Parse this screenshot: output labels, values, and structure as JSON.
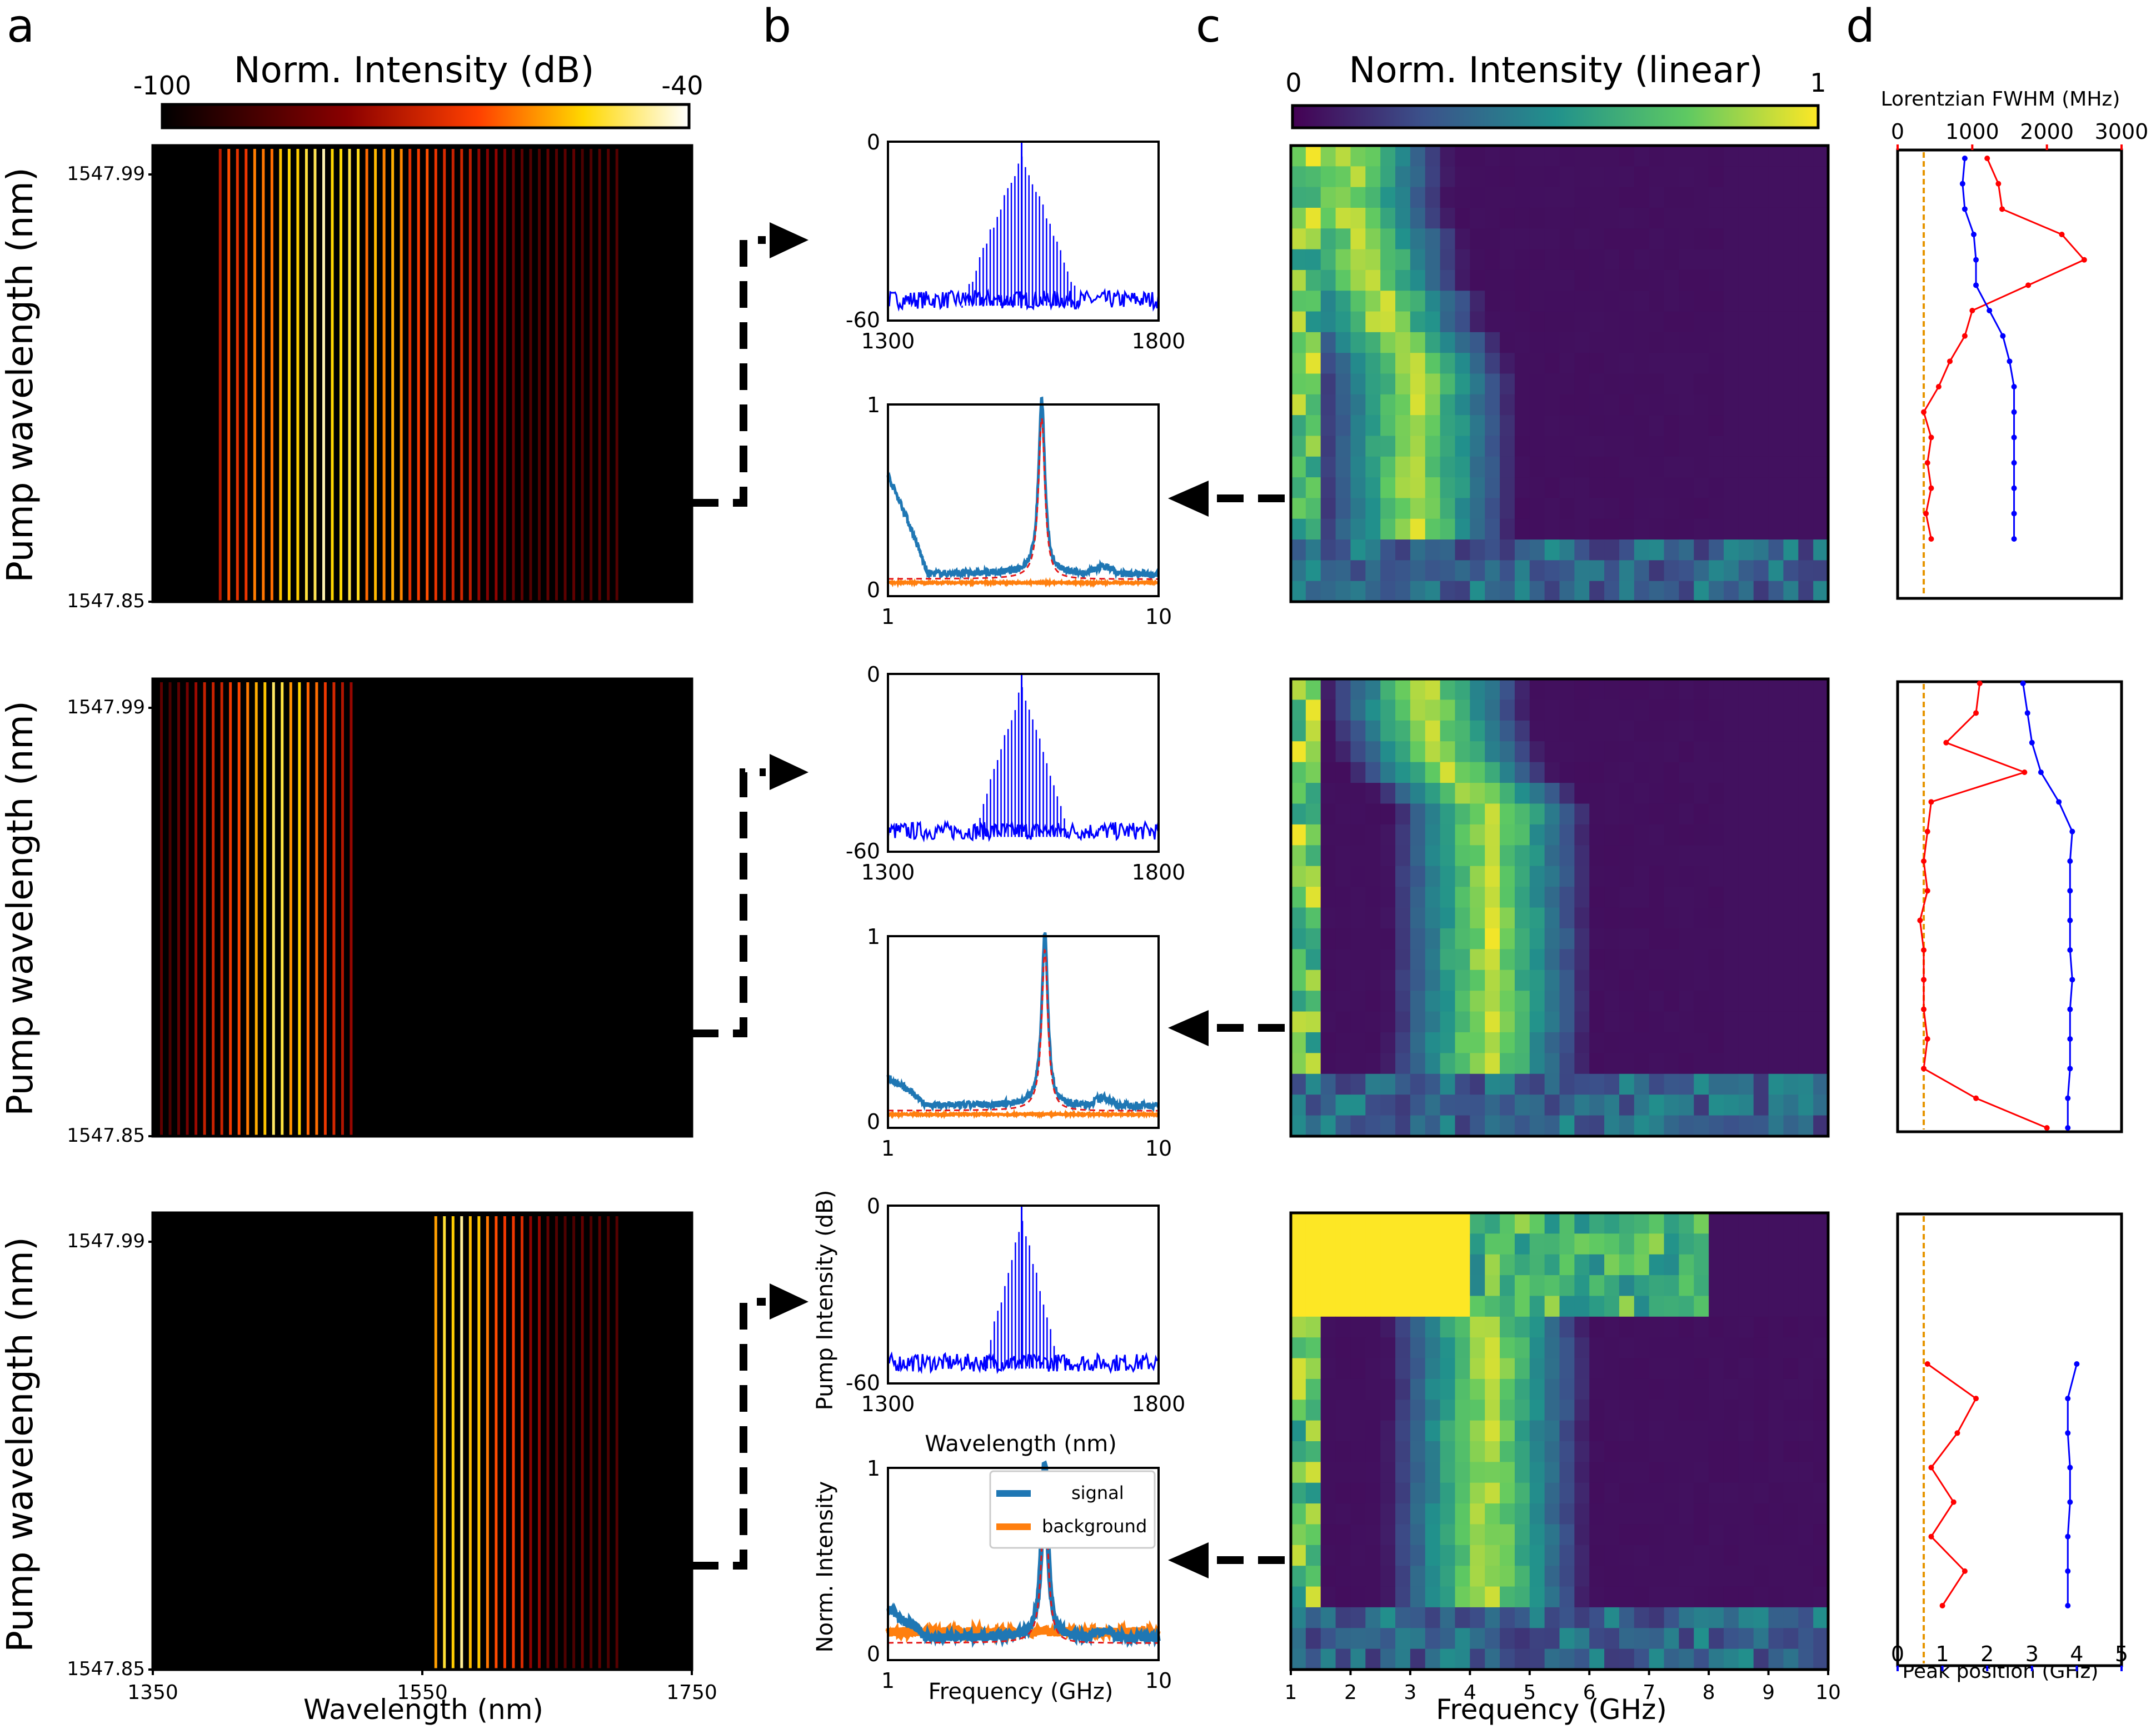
{
  "panels": {
    "a": "a",
    "b": "b",
    "c": "c",
    "d": "d"
  },
  "colorbars": {
    "db": {
      "title": "Norm. Intensity (dB)",
      "min": "-100",
      "max": "-40",
      "colormap": "hot"
    },
    "linear": {
      "title": "Norm. Intensity (linear)",
      "min": "0",
      "max": "1",
      "colormap": "viridis"
    }
  },
  "chart_data": [
    {
      "id": "a-maps",
      "type": "heatmap",
      "xlabel": "Wavelength (nm)",
      "ylabel": "Pump wavelength (nm)",
      "xticks": [
        "1350",
        "1550",
        "1750"
      ],
      "yticks": [
        "1547.99",
        "1547.85"
      ],
      "xlim": [
        1350,
        1750
      ],
      "rows": [
        {
          "comb_span_nm": [
            1400,
            1700
          ],
          "center_nm": 1480
        },
        {
          "comb_span_nm": [
            1350,
            1500
          ],
          "center_nm": 1440
        },
        {
          "comb_span_nm": [
            1560,
            1700
          ],
          "center_nm": 1580
        }
      ]
    },
    {
      "id": "b-spectra",
      "type": "line",
      "xlabel": "Wavelength (nm)",
      "ylabel": "Pump Intensity (dB)",
      "xticks": [
        "1300",
        "1800"
      ],
      "yticks": [
        "0",
        "-60"
      ],
      "xlim": [
        1300,
        1800
      ],
      "ylim": [
        -60,
        0
      ],
      "color": "#0000ff",
      "series": [
        {
          "peak_nm": 1547,
          "envelope_halfwidth_nm": 110
        },
        {
          "peak_nm": 1547,
          "envelope_halfwidth_nm": 90
        },
        {
          "peak_nm": 1547,
          "envelope_halfwidth_nm": 70
        }
      ]
    },
    {
      "id": "b-rf",
      "type": "line",
      "xlabel": "Frequency (GHz)",
      "ylabel": "Norm. Intensity",
      "xticks": [
        "1",
        "10"
      ],
      "yticks": [
        "1",
        "0"
      ],
      "xscale": "log",
      "xlim": [
        1,
        10
      ],
      "ylim": [
        0,
        1
      ],
      "legend": [
        "signal",
        "background"
      ],
      "legend_position": "top-right",
      "colors": {
        "signal": "#1f77b4",
        "background": "#ff7f0e",
        "fit": "#e41a1c"
      },
      "peaks_ghz": [
        3.7,
        3.8,
        3.8
      ]
    },
    {
      "id": "c-maps",
      "type": "heatmap",
      "xlabel": "Frequency (GHz)",
      "xticks": [
        "1",
        "2",
        "3",
        "4",
        "5",
        "6",
        "7",
        "8",
        "9",
        "10"
      ],
      "xlim": [
        1,
        10
      ]
    },
    {
      "id": "d-profiles",
      "type": "line",
      "top_xlabel": "Lorentzian FWHM (MHz)",
      "top_xticks": [
        "0",
        "1000",
        "2000",
        "3000"
      ],
      "top_xlim": [
        0,
        3000
      ],
      "bottom_xlabel": "Peak position (GHz)",
      "bottom_xticks": [
        "0",
        "1",
        "2",
        "3",
        "4",
        "5"
      ],
      "bottom_xlim": [
        0,
        5
      ],
      "fwhm_color": "#ff0000",
      "peak_color": "#0000ff",
      "reference_line_mhz": 350,
      "rows": [
        {
          "fwhm_mhz": [
            1200,
            1350,
            1400,
            2200,
            2500,
            1750,
            1000,
            900,
            700,
            550,
            350,
            450,
            400,
            450,
            380,
            450
          ],
          "peak_ghz": [
            1.5,
            1.45,
            1.5,
            1.7,
            1.75,
            1.75,
            2.05,
            2.35,
            2.5,
            2.6,
            2.6,
            2.6,
            2.6,
            2.6,
            2.6,
            2.6
          ]
        },
        {
          "fwhm_mhz": [
            1100,
            1050,
            650,
            1700,
            450,
            400,
            350,
            400,
            300,
            350,
            350,
            350,
            400,
            350,
            1050,
            2000
          ],
          "peak_ghz": [
            2.8,
            2.9,
            3.0,
            3.2,
            3.6,
            3.9,
            3.85,
            3.85,
            3.85,
            3.85,
            3.9,
            3.85,
            3.85,
            3.85,
            3.8,
            3.8
          ]
        },
        {
          "fwhm_mhz": [
            400,
            1050,
            800,
            450,
            750,
            450,
            900,
            600
          ],
          "peak_ghz": [
            4.0,
            3.8,
            3.8,
            3.85,
            3.85,
            3.8,
            3.8,
            3.8
          ]
        }
      ]
    }
  ]
}
